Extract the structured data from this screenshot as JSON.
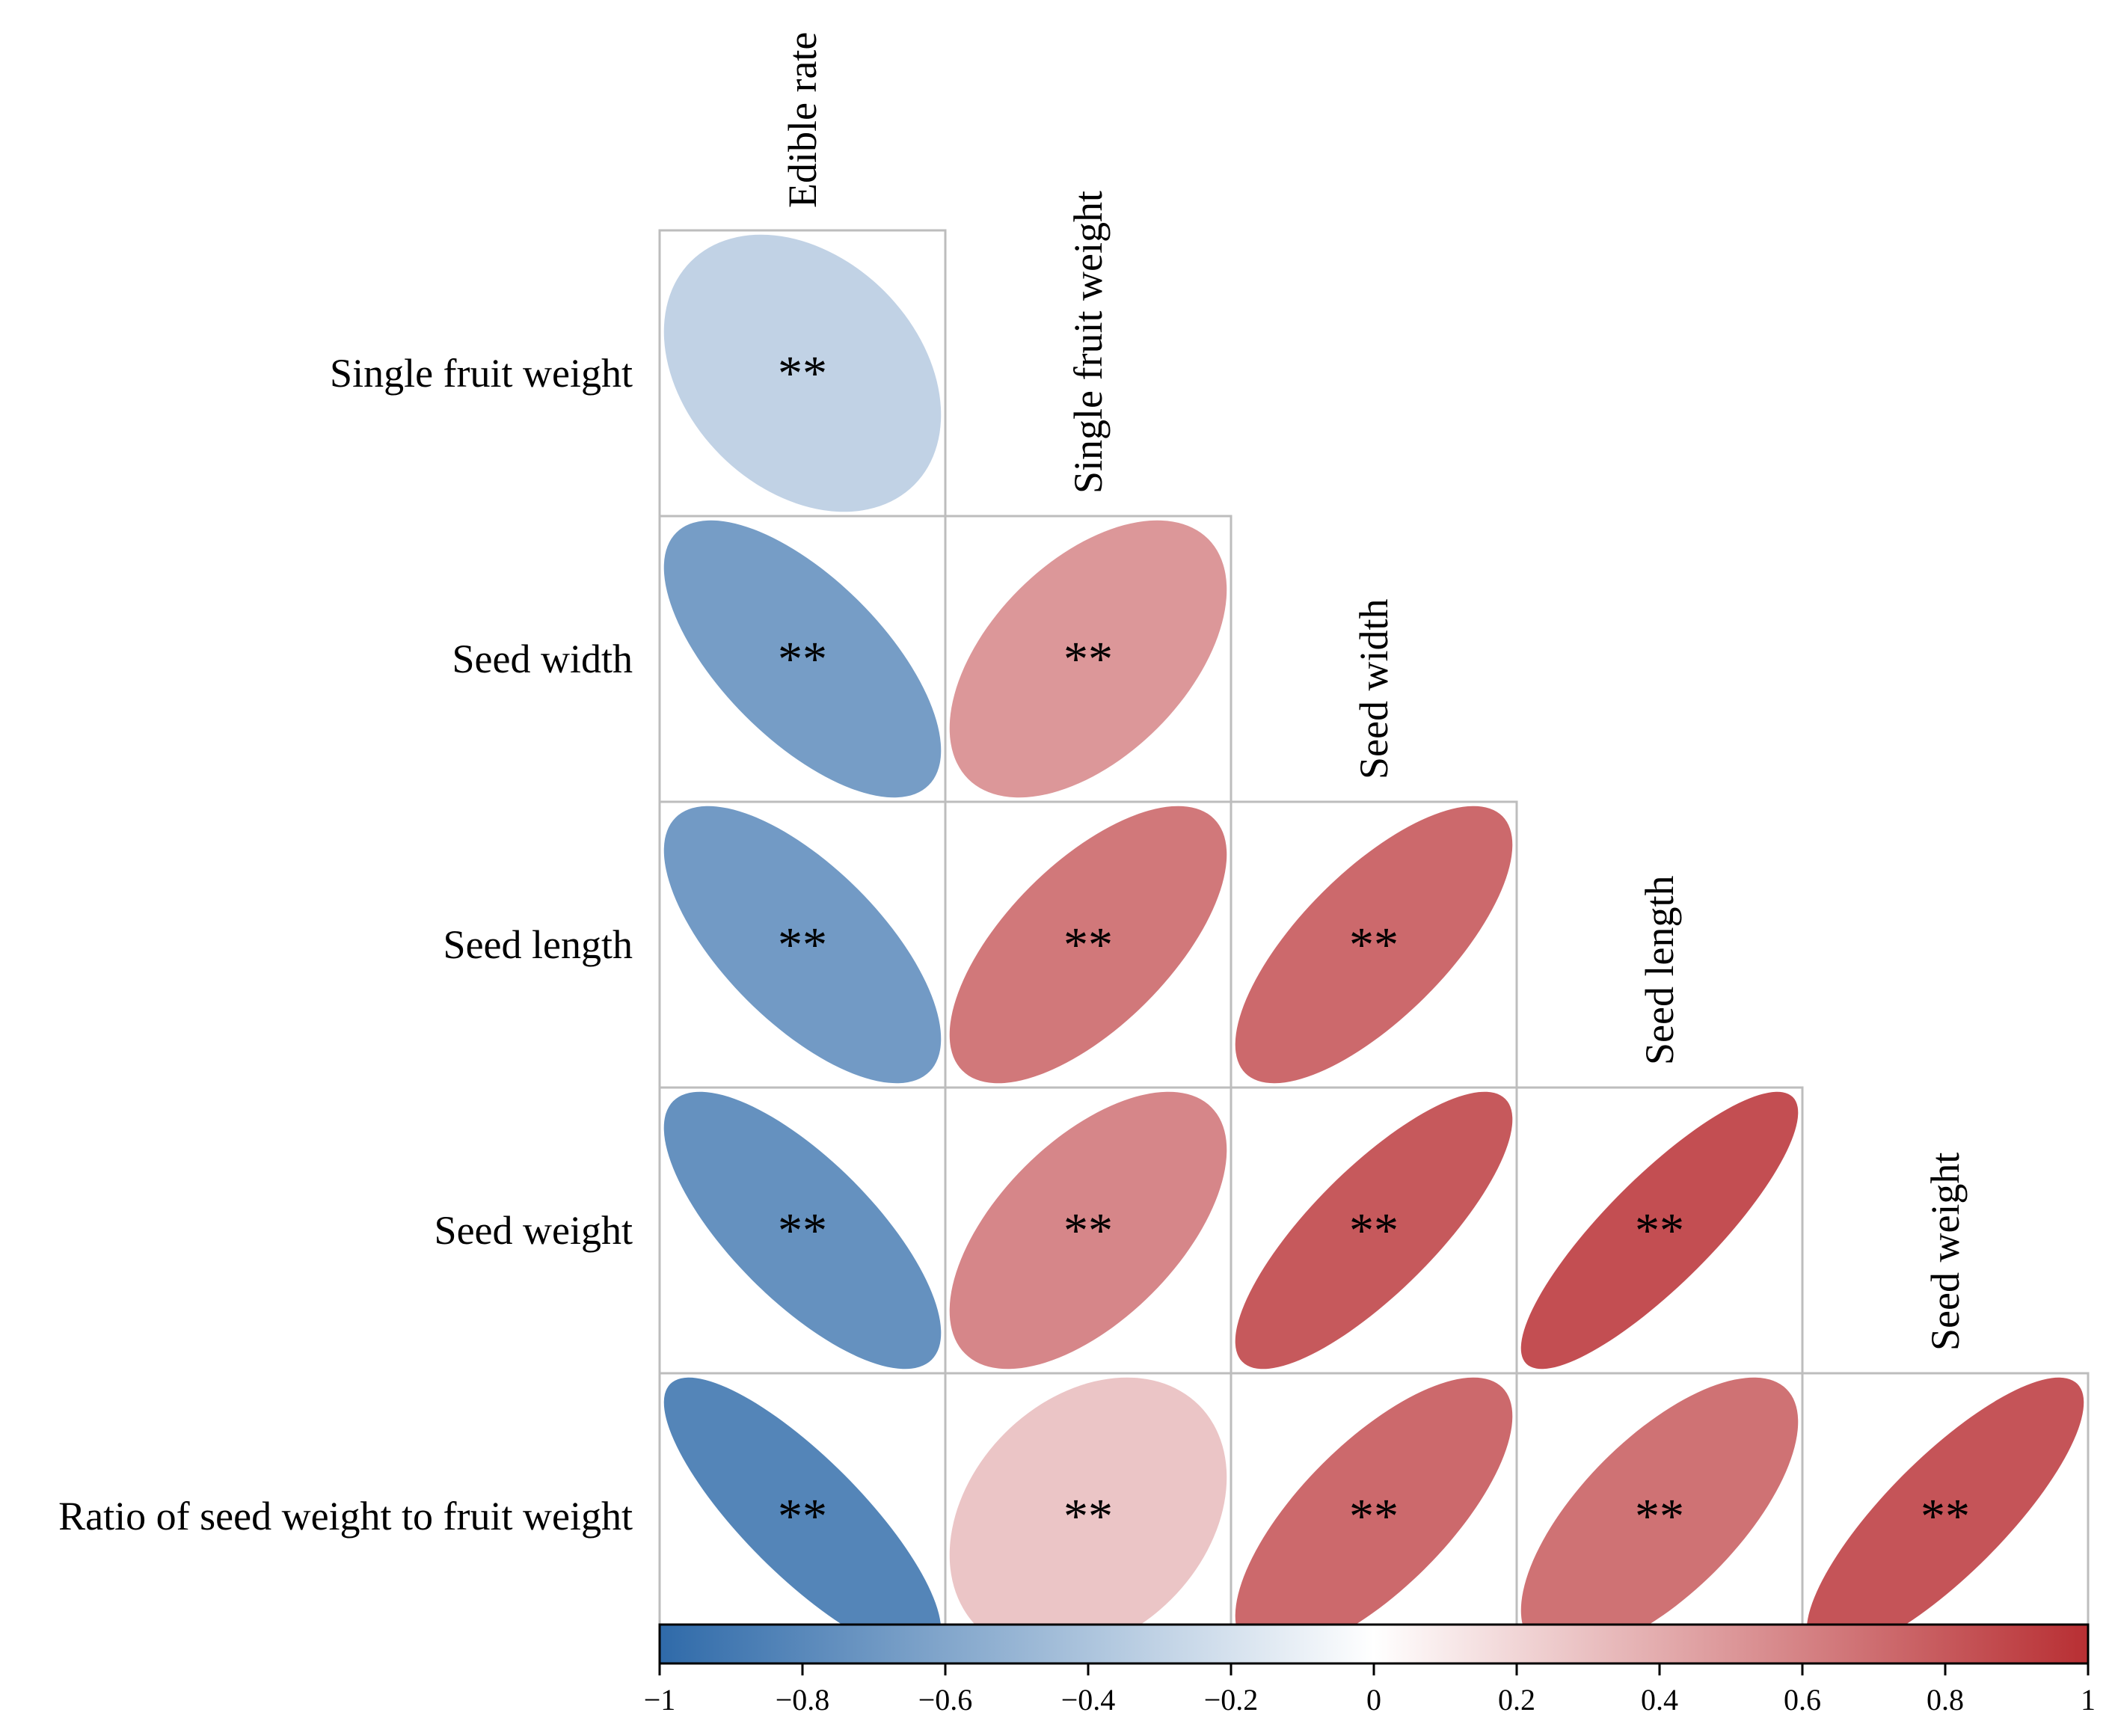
{
  "chart_data": {
    "type": "heatmap",
    "variables": [
      "Edible rate",
      "Single fruit weight",
      "Seed width",
      "Seed length",
      "Seed weight",
      "Ratio of seed weight to fruit weight"
    ],
    "row_labels": [
      "Single fruit weight",
      "Seed width",
      "Seed length",
      "Seed weight",
      "Ratio of seed weight to fruit weight"
    ],
    "col_labels": [
      "Edible rate",
      "Single fruit weight",
      "Seed width",
      "Seed length",
      "Seed weight"
    ],
    "cells": [
      {
        "row": 0,
        "col": 0,
        "r": -0.3,
        "sig": "**"
      },
      {
        "row": 1,
        "col": 0,
        "r": -0.66,
        "sig": "**"
      },
      {
        "row": 1,
        "col": 1,
        "r": 0.5,
        "sig": "**"
      },
      {
        "row": 2,
        "col": 0,
        "r": -0.68,
        "sig": "**"
      },
      {
        "row": 2,
        "col": 1,
        "r": 0.65,
        "sig": "**"
      },
      {
        "row": 2,
        "col": 2,
        "r": 0.72,
        "sig": "**"
      },
      {
        "row": 3,
        "col": 0,
        "r": -0.74,
        "sig": "**"
      },
      {
        "row": 3,
        "col": 1,
        "r": 0.58,
        "sig": "**"
      },
      {
        "row": 3,
        "col": 2,
        "r": 0.8,
        "sig": "**"
      },
      {
        "row": 3,
        "col": 3,
        "r": 0.85,
        "sig": "**"
      },
      {
        "row": 4,
        "col": 0,
        "r": -0.82,
        "sig": "**"
      },
      {
        "row": 4,
        "col": 1,
        "r": 0.28,
        "sig": "**"
      },
      {
        "row": 4,
        "col": 2,
        "r": 0.72,
        "sig": "**"
      },
      {
        "row": 4,
        "col": 3,
        "r": 0.68,
        "sig": "**"
      },
      {
        "row": 4,
        "col": 4,
        "r": 0.82,
        "sig": "**"
      }
    ],
    "colorbar": {
      "range": [
        -1,
        1
      ],
      "ticks": [
        -1,
        -0.8,
        -0.6,
        -0.4,
        -0.2,
        0,
        0.2,
        0.4,
        0.6,
        0.8,
        1
      ],
      "tick_labels": [
        "−1",
        "−0.8",
        "−0.6",
        "−0.4",
        "−0.2",
        "0",
        "0.2",
        "0.4",
        "0.6",
        "0.8",
        "1"
      ],
      "colors": {
        "negative": "#2f6aa9",
        "zero": "#ffffff",
        "positive": "#b82f33"
      }
    }
  }
}
